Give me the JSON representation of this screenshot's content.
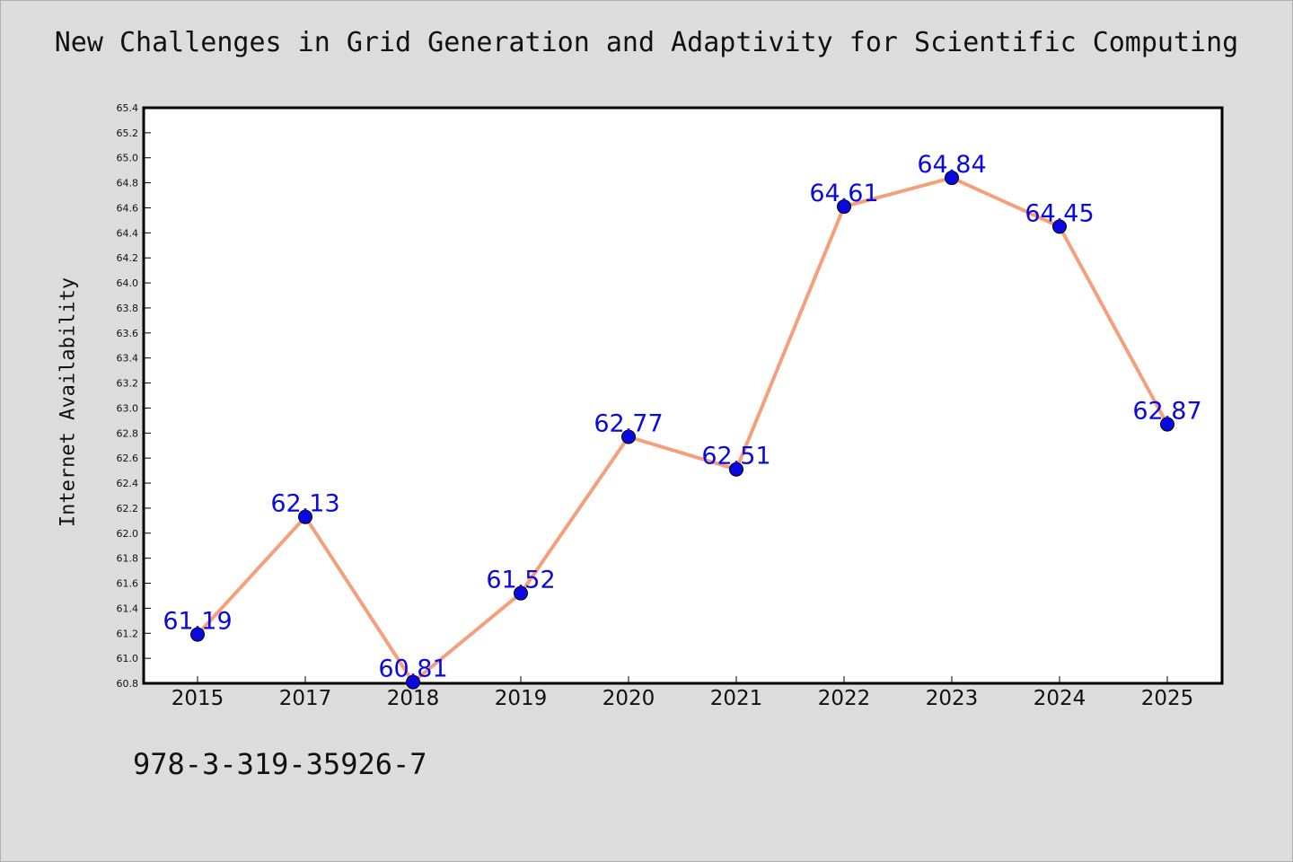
{
  "title": "New Challenges in Grid Generation and Adaptivity for Scientific Computing",
  "footer_code": "978-3-319-35926-7",
  "colors": {
    "background": "#dcdcdc",
    "plot_area": "#ffffff",
    "line": "#f4a07c",
    "marker": "#0a0ae0",
    "data_label": "#0a0ae0"
  },
  "chart_data": {
    "type": "line",
    "title": "New Challenges in Grid Generation and Adaptivity for Scientific Computing",
    "xlabel": "",
    "ylabel": "Internet Availability",
    "categories": [
      "2015",
      "2017",
      "2018",
      "2019",
      "2020",
      "2021",
      "2022",
      "2023",
      "2024",
      "2025"
    ],
    "series": [
      {
        "values": [
          61.19,
          62.13,
          60.81,
          61.52,
          62.77,
          62.51,
          64.61,
          64.84,
          64.45,
          62.87
        ],
        "labels": [
          "61.19",
          "62.13",
          "60.81",
          "61.52",
          "62.77",
          "62.51",
          "64.61",
          "64.84",
          "64.45",
          "62.87"
        ]
      }
    ],
    "ylim": [
      60.8,
      65.4
    ],
    "yticks": [
      "60.8",
      "61.0",
      "61.2",
      "61.4",
      "61.6",
      "61.8",
      "62.0",
      "62.2",
      "62.4",
      "62.6",
      "62.8",
      "63.0",
      "63.2",
      "63.4",
      "63.6",
      "63.8",
      "64.0",
      "64.2",
      "64.4",
      "64.6",
      "64.8",
      "65.0",
      "65.2",
      "65.4"
    ],
    "grid": false,
    "legend": "none",
    "markers": "circle"
  }
}
